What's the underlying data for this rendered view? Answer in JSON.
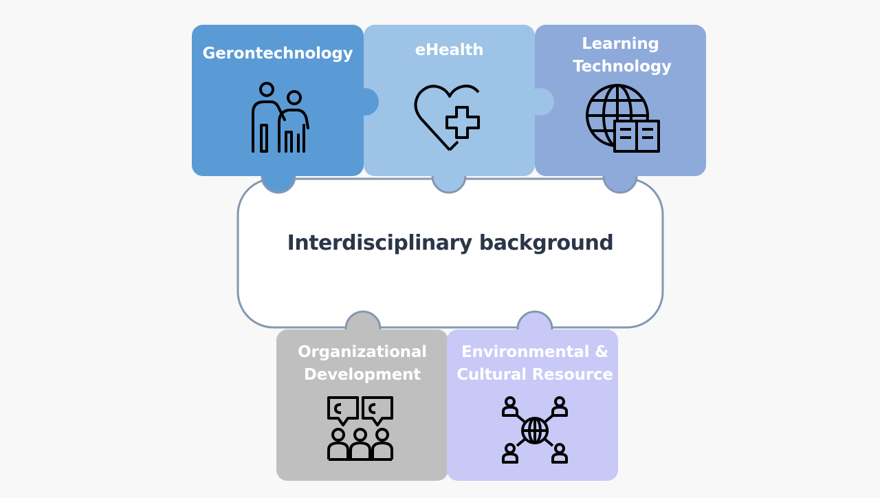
{
  "center": {
    "label": "Interdisciplinary background"
  },
  "pieces": [
    {
      "id": "gerontechnology",
      "label": "Gerontechnology",
      "icon": "elderly-couple-icon",
      "color": "#5b9bd5"
    },
    {
      "id": "ehealth",
      "label": "eHealth",
      "icon": "heart-plus-icon",
      "color": "#9dc3e6"
    },
    {
      "id": "learning",
      "label_lines": [
        "Learning",
        "Technology"
      ],
      "icon": "globe-book-icon",
      "color": "#8eaadb"
    },
    {
      "id": "organizational",
      "label_lines": [
        "Organizational",
        "Development"
      ],
      "icon": "team-puzzle-icon",
      "color": "#bfbfbf"
    },
    {
      "id": "environmental",
      "label_lines": [
        "Environmental &",
        "Cultural Resource"
      ],
      "icon": "network-people-icon",
      "color": "#c9c9f7"
    }
  ],
  "colors": {
    "outline": "#8497b0",
    "text_dark": "#2b3648",
    "background": "#f8f8f8"
  }
}
